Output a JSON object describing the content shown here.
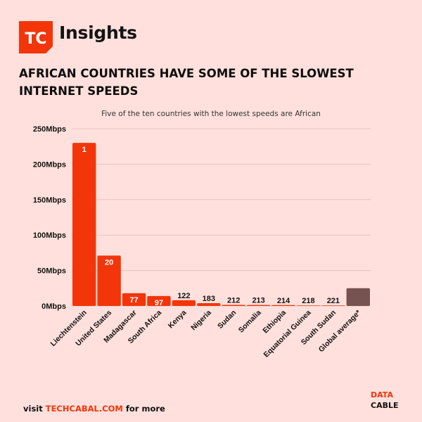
{
  "brand": {
    "logo_text": "TC",
    "name": "Insights",
    "accent_color": "#f3350a"
  },
  "header": {
    "title_line1": "AFRICAN COUNTRIES HAVE SOME OF THE SLOWEST",
    "title_line2": "INTERNET SPEEDS"
  },
  "chart_data": {
    "type": "bar",
    "title": "Five of the ten countries with the lowest speeds are African",
    "xlabel": "",
    "ylabel": "",
    "ylim": [
      0,
      250
    ],
    "y_ticks": [
      0,
      50,
      100,
      150,
      200,
      250
    ],
    "y_tick_labels": [
      "0Mbps",
      "50Mbps",
      "100Mbps",
      "150Mbps",
      "200Mbps",
      "250Mbps"
    ],
    "grid": true,
    "categories": [
      "Liechtenstein",
      "United States",
      "Madagascar",
      "South Africa",
      "Kenya",
      "Nigeria",
      "Sudan",
      "Somalia",
      "Ethiopia",
      "Equatorial Guinea",
      "South Sudan",
      "Global average*"
    ],
    "values": [
      230,
      71,
      18,
      14,
      8,
      4,
      1.5,
      1.4,
      1.2,
      0.8,
      0.7,
      25
    ],
    "data_labels": [
      "1",
      "20",
      "77",
      "97",
      "122",
      "183",
      "212",
      "213",
      "214",
      "218",
      "221",
      ""
    ],
    "bar_colors": [
      "#f3350a",
      "#f3350a",
      "#f3350a",
      "#f3350a",
      "#f3350a",
      "#f3350a",
      "#f3350a",
      "#f3350a",
      "#f3350a",
      "#f26a45",
      "#f26a45",
      "#765250"
    ],
    "gridline_color": "#e9c3bf"
  },
  "footer": {
    "prefix": "visit ",
    "link": "TECHCABAL.COM",
    "suffix": " for more"
  },
  "datacable": {
    "line1": "DATA",
    "line2": "CABLE"
  }
}
